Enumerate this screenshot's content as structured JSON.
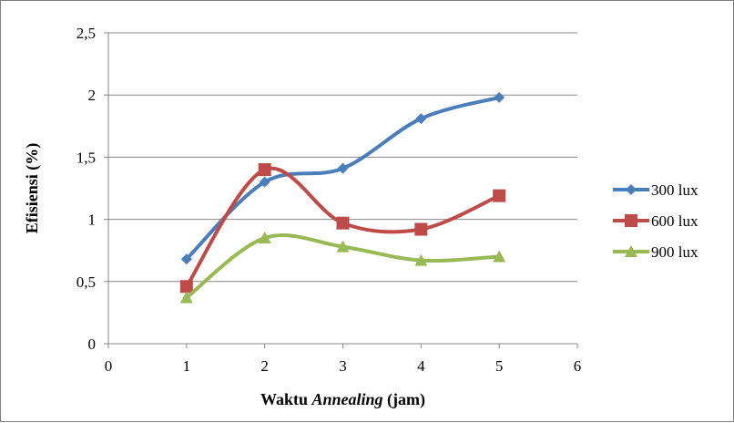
{
  "chart_data": {
    "type": "line",
    "title": "",
    "xlabel_parts": [
      "Waktu ",
      "Annealing",
      " (jam)"
    ],
    "ylabel": "Efisiensi (%)",
    "xlim": [
      0,
      6
    ],
    "ylim": [
      0,
      2.5
    ],
    "x_ticks": [
      0,
      1,
      2,
      3,
      4,
      5,
      6
    ],
    "x_tick_labels": [
      "0",
      "1",
      "2",
      "3",
      "4",
      "5",
      "6"
    ],
    "y_ticks": [
      0,
      0.5,
      1,
      1.5,
      2,
      2.5
    ],
    "y_tick_labels": [
      "0",
      "0,5",
      "1",
      "1,5",
      "2",
      "2,5"
    ],
    "grid": "horizontal",
    "legend_position": "right",
    "x": [
      1,
      2,
      3,
      4,
      5
    ],
    "series": [
      {
        "name": "300 lux",
        "values": [
          0.68,
          1.3,
          1.41,
          1.81,
          1.98
        ],
        "color": "#4a7ebb",
        "marker": "diamond"
      },
      {
        "name": "600 lux",
        "values": [
          0.46,
          1.4,
          0.97,
          0.92,
          1.19
        ],
        "color": "#be4b48",
        "marker": "square"
      },
      {
        "name": "900 lux",
        "values": [
          0.37,
          0.85,
          0.78,
          0.67,
          0.7
        ],
        "color": "#98b954",
        "marker": "triangle"
      }
    ]
  }
}
